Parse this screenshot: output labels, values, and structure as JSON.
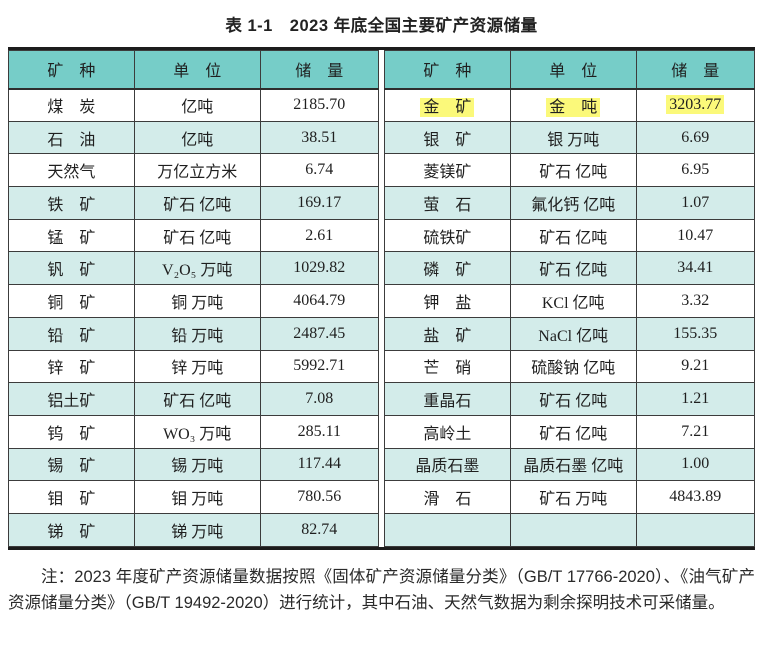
{
  "title": "表 1-1　2023 年底全国主要矿产资源储量",
  "colors": {
    "header_bg": "#76cdc8",
    "alt_row_bg": "#d3ecea",
    "highlight_bg": "#fbf97a",
    "border": "#3c3c3c",
    "outer_border": "#1c1c1c"
  },
  "table": {
    "headers": [
      "矿　种",
      "单　位",
      "储　量"
    ],
    "left_rows": [
      {
        "mineral": "煤　炭",
        "unit": "亿吨",
        "reserve": "2185.70",
        "highlight": false
      },
      {
        "mineral": "石　油",
        "unit": "亿吨",
        "reserve": "38.51",
        "highlight": false
      },
      {
        "mineral": "天然气",
        "unit": "万亿立方米",
        "reserve": "6.74",
        "highlight": false
      },
      {
        "mineral": "铁　矿",
        "unit": "矿石 亿吨",
        "reserve": "169.17",
        "highlight": false
      },
      {
        "mineral": "锰　矿",
        "unit": "矿石 亿吨",
        "reserve": "2.61",
        "highlight": false
      },
      {
        "mineral": "钒　矿",
        "unit": "V₂O₅ 万吨",
        "reserve": "1029.82",
        "highlight": false
      },
      {
        "mineral": "铜　矿",
        "unit": "铜 万吨",
        "reserve": "4064.79",
        "highlight": false
      },
      {
        "mineral": "铅　矿",
        "unit": "铅 万吨",
        "reserve": "2487.45",
        "highlight": false
      },
      {
        "mineral": "锌　矿",
        "unit": "锌 万吨",
        "reserve": "5992.71",
        "highlight": false
      },
      {
        "mineral": "铝土矿",
        "unit": "矿石 亿吨",
        "reserve": "7.08",
        "highlight": false
      },
      {
        "mineral": "钨　矿",
        "unit": "WO₃ 万吨",
        "reserve": "285.11",
        "highlight": false
      },
      {
        "mineral": "锡　矿",
        "unit": "锡 万吨",
        "reserve": "117.44",
        "highlight": false
      },
      {
        "mineral": "钼　矿",
        "unit": "钼 万吨",
        "reserve": "780.56",
        "highlight": false
      },
      {
        "mineral": "锑　矿",
        "unit": "锑 万吨",
        "reserve": "82.74",
        "highlight": false
      }
    ],
    "right_rows": [
      {
        "mineral": "金　矿",
        "unit": "金　吨",
        "reserve": "3203.77",
        "highlight": true
      },
      {
        "mineral": "银　矿",
        "unit": "银 万吨",
        "reserve": "6.69",
        "highlight": false
      },
      {
        "mineral": "菱镁矿",
        "unit": "矿石 亿吨",
        "reserve": "6.95",
        "highlight": false
      },
      {
        "mineral": "萤　石",
        "unit": "氟化钙 亿吨",
        "reserve": "1.07",
        "highlight": false
      },
      {
        "mineral": "硫铁矿",
        "unit": "矿石 亿吨",
        "reserve": "10.47",
        "highlight": false
      },
      {
        "mineral": "磷　矿",
        "unit": "矿石 亿吨",
        "reserve": "34.41",
        "highlight": false
      },
      {
        "mineral": "钾　盐",
        "unit": "KCl 亿吨",
        "reserve": "3.32",
        "highlight": false
      },
      {
        "mineral": "盐　矿",
        "unit": "NaCl 亿吨",
        "reserve": "155.35",
        "highlight": false
      },
      {
        "mineral": "芒　硝",
        "unit": "硫酸钠 亿吨",
        "reserve": "9.21",
        "highlight": false
      },
      {
        "mineral": "重晶石",
        "unit": "矿石 亿吨",
        "reserve": "1.21",
        "highlight": false
      },
      {
        "mineral": "高岭土",
        "unit": "矿石 亿吨",
        "reserve": "7.21",
        "highlight": false
      },
      {
        "mineral": "晶质石墨",
        "unit": "晶质石墨 亿吨",
        "reserve": "1.00",
        "highlight": false
      },
      {
        "mineral": "滑　石",
        "unit": "矿石 万吨",
        "reserve": "4843.89",
        "highlight": false
      },
      {
        "mineral": "",
        "unit": "",
        "reserve": "",
        "highlight": false
      }
    ]
  },
  "note": "注：2023 年度矿产资源储量数据按照《固体矿产资源储量分类》（GB/T 17766-2020）、《油气矿产资源储量分类》（GB/T 19492-2020）进行统计，其中石油、天然气数据为剩余探明技术可采储量。"
}
